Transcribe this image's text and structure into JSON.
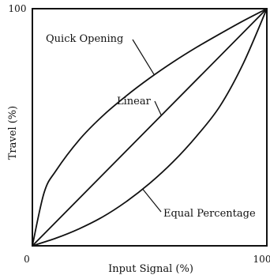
{
  "chart_data": {
    "type": "line",
    "title": "",
    "xlabel": "Input Signal (%)",
    "ylabel": "Travel (%)",
    "xlim": [
      0,
      100
    ],
    "ylim": [
      0,
      100
    ],
    "ticks": {
      "x_min": "0",
      "x_max": "100",
      "y_max": "100"
    },
    "grid": false,
    "series": [
      {
        "name": "Quick Opening",
        "x": [
          0,
          5,
          10,
          20,
          30,
          40,
          50,
          60,
          70,
          80,
          90,
          100
        ],
        "y": [
          0,
          22.4,
          31.6,
          44.7,
          54.8,
          63.2,
          70.7,
          77.5,
          83.7,
          89.4,
          94.9,
          100
        ]
      },
      {
        "name": "Linear",
        "x": [
          0,
          100
        ],
        "y": [
          0,
          100
        ]
      },
      {
        "name": "Equal Percentage",
        "x": [
          0,
          10,
          20,
          30,
          40,
          50,
          60,
          70,
          80,
          90,
          100
        ],
        "y": [
          0,
          3.2,
          7.2,
          12.2,
          18.6,
          26.3,
          35.4,
          46.2,
          58.9,
          77.0,
          100
        ]
      }
    ],
    "annotations": [
      "Quick Opening",
      "Linear",
      "Equal Percentage"
    ]
  }
}
